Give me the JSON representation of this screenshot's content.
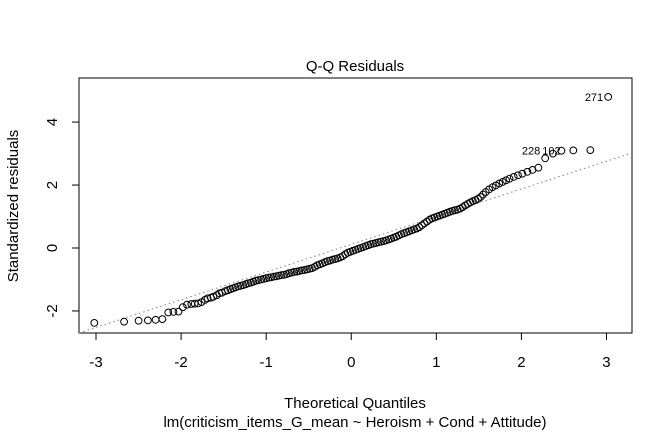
{
  "chart_data": {
    "type": "scatter",
    "title": "Q-Q Residuals",
    "xlabel": "Theoretical Quantiles",
    "ylabel": "Standardized residuals",
    "subtitle": "lm(criticism_items_G_mean ~ Heroism + Cond + Attitude)",
    "xlim": [
      -3.2,
      3.3
    ],
    "ylim": [
      -2.7,
      5.4
    ],
    "xticks": [
      -3,
      -2,
      -1,
      0,
      1,
      2,
      3
    ],
    "xtick_labels": [
      "-3",
      "-2",
      "-1",
      "0",
      "1",
      "2",
      "3"
    ],
    "yticks": [
      -2,
      0,
      2,
      4
    ],
    "ytick_labels": [
      "-2",
      "0",
      "2",
      "4"
    ],
    "grid": false,
    "legend": "none",
    "point_color": "#000000",
    "reference_line": {
      "style": "dotted",
      "color": "#808080",
      "x": [
        -3.2,
        3.3
      ],
      "y": [
        -2.95,
        3.02
      ]
    },
    "point_labels": [
      {
        "label": "271",
        "x": 3.02,
        "y": 4.8
      },
      {
        "label": "228",
        "x": 2.28,
        "y": 3.1
      },
      {
        "label": "102",
        "x": 2.52,
        "y": 3.1
      }
    ],
    "points": [
      [
        -3.02,
        -2.38
      ],
      [
        -2.67,
        -2.34
      ],
      [
        -2.5,
        -2.31
      ],
      [
        -2.39,
        -2.3
      ],
      [
        -2.3,
        -2.28
      ],
      [
        -2.22,
        -2.26
      ],
      [
        -2.15,
        -2.05
      ],
      [
        -2.09,
        -2.03
      ],
      [
        -2.03,
        -2.02
      ],
      [
        -1.98,
        -1.88
      ],
      [
        -1.93,
        -1.8
      ],
      [
        -1.88,
        -1.78
      ],
      [
        -1.84,
        -1.77
      ],
      [
        -1.8,
        -1.76
      ],
      [
        -1.76,
        -1.72
      ],
      [
        -1.72,
        -1.65
      ],
      [
        -1.69,
        -1.6
      ],
      [
        -1.65,
        -1.58
      ],
      [
        -1.62,
        -1.55
      ],
      [
        -1.58,
        -1.5
      ],
      [
        -1.55,
        -1.44
      ],
      [
        -1.52,
        -1.42
      ],
      [
        -1.48,
        -1.37
      ],
      [
        -1.45,
        -1.34
      ],
      [
        -1.42,
        -1.31
      ],
      [
        -1.39,
        -1.28
      ],
      [
        -1.36,
        -1.25
      ],
      [
        -1.33,
        -1.22
      ],
      [
        -1.3,
        -1.2
      ],
      [
        -1.27,
        -1.18
      ],
      [
        -1.24,
        -1.15
      ],
      [
        -1.21,
        -1.12
      ],
      [
        -1.18,
        -1.1
      ],
      [
        -1.15,
        -1.07
      ],
      [
        -1.12,
        -1.04
      ],
      [
        -1.09,
        -1.02
      ],
      [
        -1.06,
        -1.0
      ],
      [
        -1.03,
        -0.98
      ],
      [
        -1.0,
        -0.96
      ],
      [
        -0.97,
        -0.94
      ],
      [
        -0.94,
        -0.93
      ],
      [
        -0.91,
        -0.91
      ],
      [
        -0.88,
        -0.9
      ],
      [
        -0.85,
        -0.88
      ],
      [
        -0.82,
        -0.86
      ],
      [
        -0.79,
        -0.85
      ],
      [
        -0.76,
        -0.83
      ],
      [
        -0.73,
        -0.8
      ],
      [
        -0.7,
        -0.78
      ],
      [
        -0.67,
        -0.76
      ],
      [
        -0.64,
        -0.75
      ],
      [
        -0.61,
        -0.73
      ],
      [
        -0.58,
        -0.71
      ],
      [
        -0.55,
        -0.7
      ],
      [
        -0.52,
        -0.68
      ],
      [
        -0.49,
        -0.66
      ],
      [
        -0.46,
        -0.64
      ],
      [
        -0.43,
        -0.6
      ],
      [
        -0.4,
        -0.55
      ],
      [
        -0.37,
        -0.52
      ],
      [
        -0.34,
        -0.49
      ],
      [
        -0.31,
        -0.45
      ],
      [
        -0.28,
        -0.42
      ],
      [
        -0.25,
        -0.4
      ],
      [
        -0.22,
        -0.37
      ],
      [
        -0.19,
        -0.35
      ],
      [
        -0.16,
        -0.33
      ],
      [
        -0.13,
        -0.3
      ],
      [
        -0.1,
        -0.26
      ],
      [
        -0.07,
        -0.2
      ],
      [
        -0.04,
        -0.15
      ],
      [
        -0.01,
        -0.12
      ],
      [
        0.02,
        -0.09
      ],
      [
        0.05,
        -0.06
      ],
      [
        0.08,
        -0.03
      ],
      [
        0.11,
        0.0
      ],
      [
        0.14,
        0.03
      ],
      [
        0.17,
        0.06
      ],
      [
        0.2,
        0.09
      ],
      [
        0.23,
        0.12
      ],
      [
        0.26,
        0.14
      ],
      [
        0.29,
        0.16
      ],
      [
        0.32,
        0.18
      ],
      [
        0.35,
        0.2
      ],
      [
        0.38,
        0.22
      ],
      [
        0.41,
        0.24
      ],
      [
        0.44,
        0.27
      ],
      [
        0.47,
        0.3
      ],
      [
        0.5,
        0.33
      ],
      [
        0.53,
        0.36
      ],
      [
        0.56,
        0.4
      ],
      [
        0.59,
        0.44
      ],
      [
        0.62,
        0.47
      ],
      [
        0.65,
        0.5
      ],
      [
        0.68,
        0.53
      ],
      [
        0.71,
        0.56
      ],
      [
        0.74,
        0.59
      ],
      [
        0.77,
        0.62
      ],
      [
        0.8,
        0.66
      ],
      [
        0.83,
        0.72
      ],
      [
        0.86,
        0.78
      ],
      [
        0.89,
        0.84
      ],
      [
        0.92,
        0.9
      ],
      [
        0.95,
        0.94
      ],
      [
        0.98,
        0.97
      ],
      [
        1.01,
        1.0
      ],
      [
        1.04,
        1.03
      ],
      [
        1.07,
        1.06
      ],
      [
        1.1,
        1.09
      ],
      [
        1.13,
        1.12
      ],
      [
        1.16,
        1.15
      ],
      [
        1.19,
        1.18
      ],
      [
        1.22,
        1.2
      ],
      [
        1.25,
        1.22
      ],
      [
        1.28,
        1.25
      ],
      [
        1.31,
        1.3
      ],
      [
        1.34,
        1.35
      ],
      [
        1.37,
        1.4
      ],
      [
        1.4,
        1.45
      ],
      [
        1.43,
        1.49
      ],
      [
        1.46,
        1.52
      ],
      [
        1.49,
        1.56
      ],
      [
        1.52,
        1.62
      ],
      [
        1.55,
        1.7
      ],
      [
        1.58,
        1.78
      ],
      [
        1.62,
        1.86
      ],
      [
        1.66,
        1.93
      ],
      [
        1.7,
        1.99
      ],
      [
        1.74,
        2.05
      ],
      [
        1.78,
        2.1
      ],
      [
        1.82,
        2.15
      ],
      [
        1.86,
        2.2
      ],
      [
        1.91,
        2.26
      ],
      [
        1.96,
        2.31
      ],
      [
        2.01,
        2.36
      ],
      [
        2.07,
        2.42
      ],
      [
        2.13,
        2.48
      ],
      [
        2.2,
        2.55
      ],
      [
        2.28,
        2.85
      ],
      [
        2.37,
        3.0
      ],
      [
        2.47,
        3.09
      ],
      [
        2.61,
        3.1
      ],
      [
        2.81,
        3.11
      ],
      [
        3.02,
        4.8
      ]
    ]
  }
}
